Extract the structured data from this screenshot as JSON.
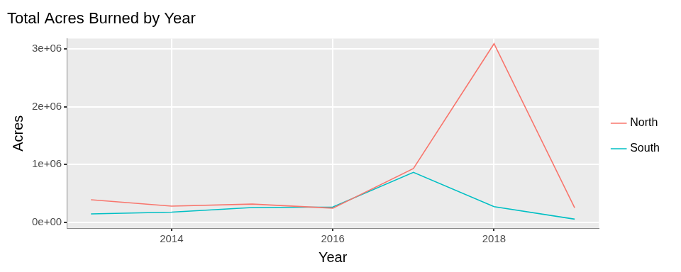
{
  "chart_data": {
    "type": "line",
    "title": "Total Acres Burned by Year",
    "x_label": "Year",
    "y_label": "Acres",
    "x": [
      2013,
      2014,
      2015,
      2016,
      2017,
      2018,
      2019
    ],
    "series": [
      {
        "name": "North",
        "color": "#f8766d",
        "values": [
          390000,
          280000,
          315000,
          245000,
          930000,
          3090000,
          250000
        ]
      },
      {
        "name": "South",
        "color": "#00bfc4",
        "values": [
          145000,
          175000,
          255000,
          265000,
          865000,
          270000,
          55000
        ]
      }
    ],
    "xlim": [
      2012.7,
      2019.3
    ],
    "xticks": [
      2014,
      2016,
      2018
    ],
    "ylim": [
      -100000,
      3180000
    ],
    "yticks": [
      {
        "value": 0,
        "label": "0e+00"
      },
      {
        "value": 1000000,
        "label": "1e+06"
      },
      {
        "value": 2000000,
        "label": "2e+06"
      },
      {
        "value": 3000000,
        "label": "3e+06"
      }
    ],
    "grid": true,
    "legend": "right"
  }
}
